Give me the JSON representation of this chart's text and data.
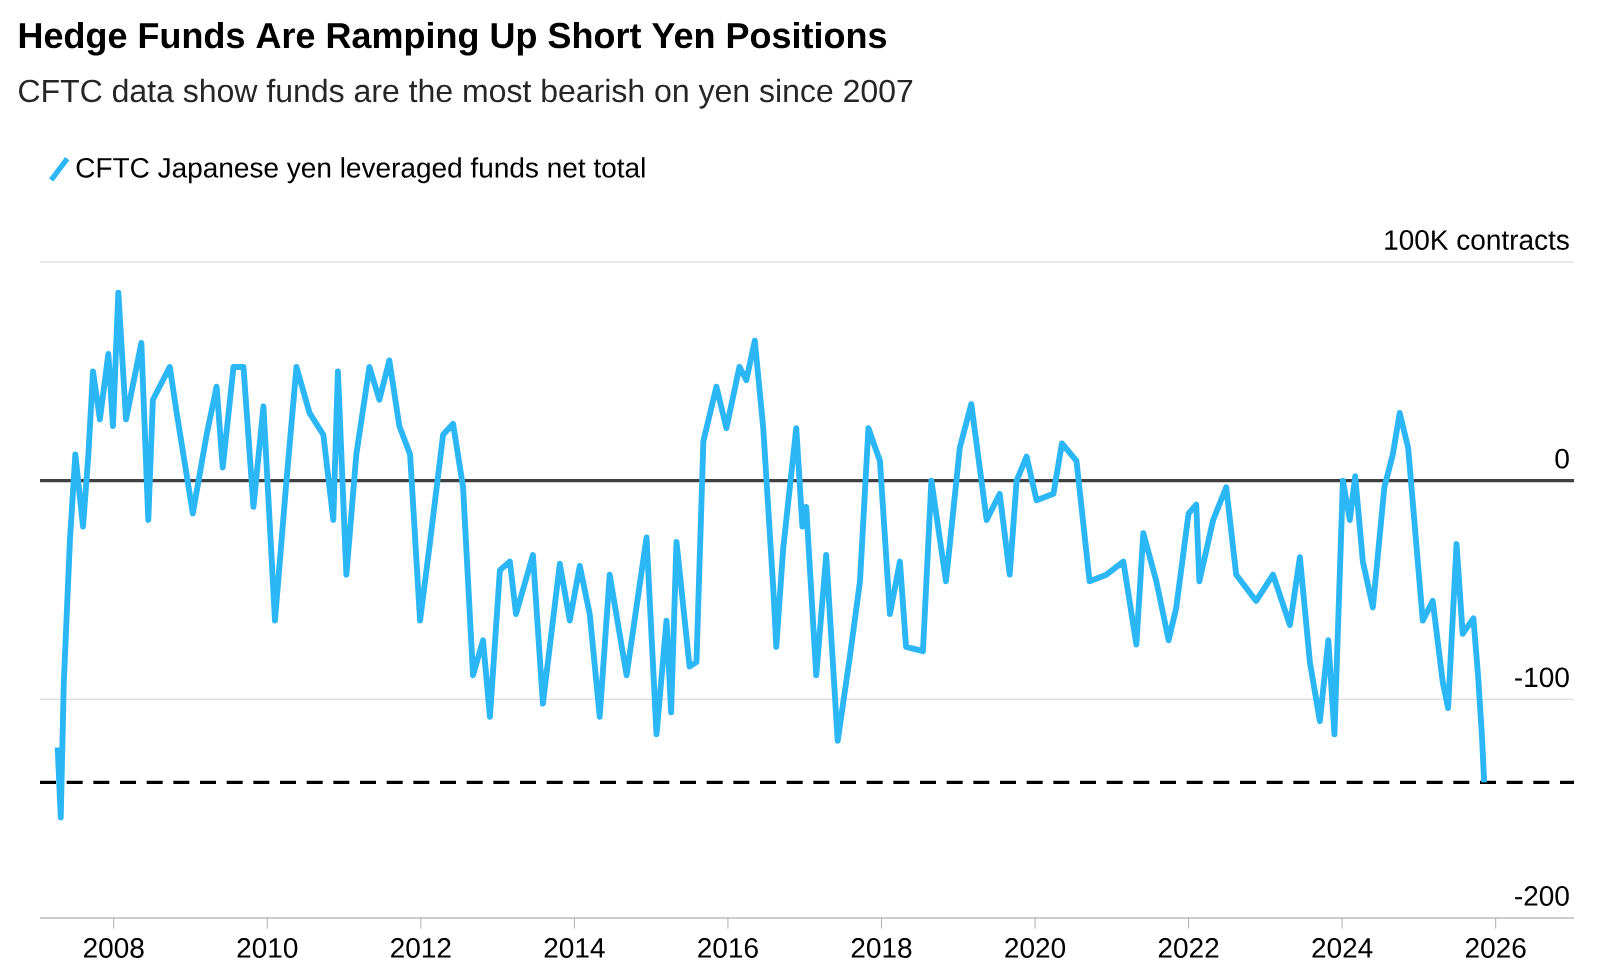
{
  "chart_data": {
    "type": "line",
    "title": "Hedge Funds Are Ramping Up Short Yen Positions",
    "subtitle": "CFTC data show funds are the most bearish on yen since 2007",
    "x": [
      2007.27,
      2007.31,
      2007.35,
      2007.43,
      2007.5,
      2007.6,
      2007.67,
      2007.73,
      2007.82,
      2007.93,
      2007.99,
      2008.06,
      2008.16,
      2008.36,
      2008.45,
      2008.51,
      2008.73,
      2008.82,
      2009.03,
      2009.21,
      2009.34,
      2009.42,
      2009.56,
      2009.69,
      2009.82,
      2009.95,
      2010.1,
      2010.25,
      2010.38,
      2010.55,
      2010.73,
      2010.86,
      2010.92,
      2011.03,
      2011.16,
      2011.33,
      2011.46,
      2011.59,
      2011.72,
      2011.86,
      2011.99,
      2012.12,
      2012.29,
      2012.42,
      2012.55,
      2012.68,
      2012.81,
      2012.9,
      2013.03,
      2013.16,
      2013.24,
      2013.46,
      2013.59,
      2013.81,
      2013.94,
      2014.07,
      2014.2,
      2014.33,
      2014.46,
      2014.68,
      2014.94,
      2015.07,
      2015.2,
      2015.26,
      2015.33,
      2015.5,
      2015.59,
      2015.68,
      2015.85,
      2015.98,
      2016.15,
      2016.24,
      2016.35,
      2016.46,
      2016.59,
      2016.63,
      2016.72,
      2016.89,
      2016.97,
      2017.02,
      2017.15,
      2017.28,
      2017.43,
      2017.59,
      2017.72,
      2017.83,
      2017.98,
      2018.11,
      2018.24,
      2018.32,
      2018.54,
      2018.65,
      2018.84,
      2019.02,
      2019.17,
      2019.37,
      2019.54,
      2019.67,
      2019.76,
      2019.89,
      2020.02,
      2020.24,
      2020.35,
      2020.54,
      2020.71,
      2020.93,
      2021.15,
      2021.32,
      2021.41,
      2021.58,
      2021.74,
      2021.84,
      2022.0,
      2022.1,
      2022.14,
      2022.32,
      2022.49,
      2022.62,
      2022.88,
      2023.1,
      2023.32,
      2023.45,
      2023.58,
      2023.71,
      2023.82,
      2023.9,
      2024.01,
      2024.1,
      2024.17,
      2024.27,
      2024.4,
      2024.55,
      2024.66,
      2024.75,
      2024.86,
      2025.05,
      2025.18,
      2025.31,
      2025.38,
      2025.49,
      2025.57,
      2025.71,
      2025.77,
      2025.82,
      2025.85
    ],
    "series": [
      {
        "name": "CFTC Japanese yen leveraged funds net total",
        "color": "#2bb6f6",
        "values": [
          -122,
          -154,
          -92,
          -27,
          12,
          -21,
          12,
          50,
          28,
          58,
          25,
          86,
          28,
          63,
          -18,
          37,
          52,
          31,
          -15,
          21,
          43,
          6,
          52,
          52,
          -12,
          34,
          -64,
          0,
          52,
          31,
          21,
          -18,
          50,
          -43,
          12,
          52,
          37,
          55,
          25,
          12,
          -64,
          -28,
          21,
          26,
          -3,
          -89,
          -73,
          -108,
          -41,
          -37,
          -61,
          -34,
          -102,
          -38,
          -64,
          -39,
          -61,
          -108,
          -43,
          -89,
          -26,
          -116,
          -64,
          -106,
          -28,
          -85,
          -83,
          18,
          43,
          24,
          52,
          46,
          64,
          24,
          -49,
          -76,
          -31,
          24,
          -21,
          -12,
          -89,
          -34,
          -119,
          -80,
          -46,
          24,
          9,
          -61,
          -37,
          -76,
          -78,
          0,
          -46,
          15,
          35,
          -18,
          -6,
          -43,
          0,
          11,
          -9,
          -6,
          17,
          9,
          -46,
          -43,
          -37,
          -75,
          -24,
          -46,
          -73,
          -58,
          -15,
          -11,
          -46,
          -18,
          -3,
          -43,
          -55,
          -43,
          -66,
          -35,
          -83,
          -110,
          -73,
          -116,
          0,
          -18,
          2,
          -37,
          -58,
          -3,
          12,
          31,
          15,
          -64,
          -55,
          -92,
          -104,
          -29,
          -70,
          -63,
          -89,
          -116,
          -138
        ]
      }
    ],
    "xlim": [
      2007.04,
      2027.02
    ],
    "xticks": [
      2008,
      2010,
      2012,
      2014,
      2016,
      2018,
      2020,
      2022,
      2024,
      2026
    ],
    "ylim": [
      -200,
      100
    ],
    "yticks": [
      -200,
      -100,
      0,
      {
        "value": 100,
        "label": "100K contracts"
      }
    ],
    "grid": "y",
    "legend": "top left",
    "ref_lines": [
      {
        "axis": "y",
        "value": 0,
        "color": "#404040",
        "line_style": "solid"
      },
      {
        "axis": "y",
        "value": -138,
        "color": "#000000",
        "line_style": "dashed"
      }
    ]
  }
}
